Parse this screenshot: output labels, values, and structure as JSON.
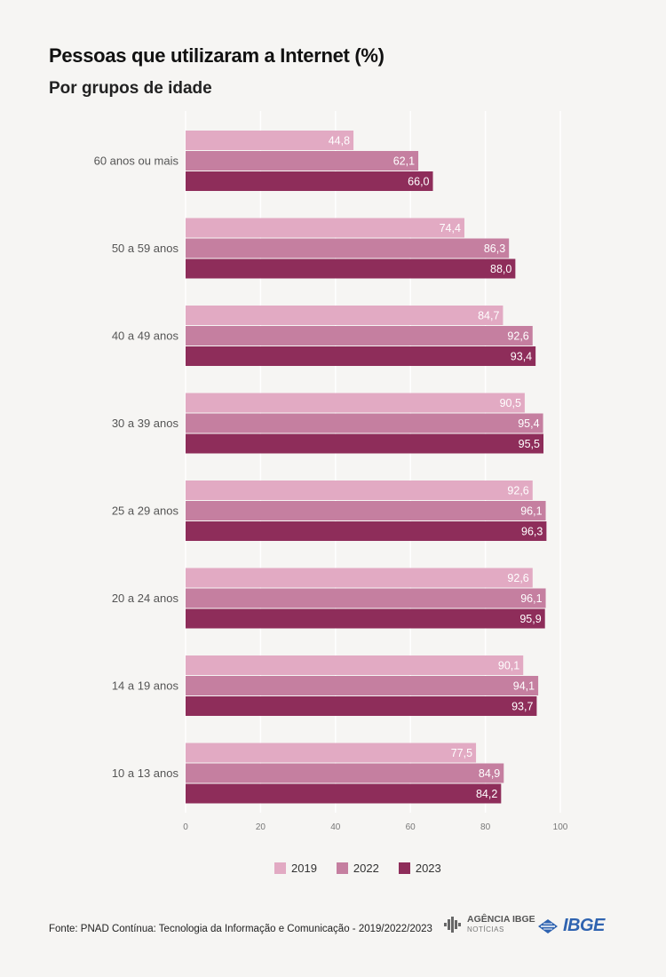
{
  "header": {
    "title": "Pessoas que utilizaram a Internet (%)",
    "subtitle": "Por grupos de idade"
  },
  "legend": {
    "items": [
      {
        "label": "2019",
        "color": "#e2aac3"
      },
      {
        "label": "2022",
        "color": "#c57fa0"
      },
      {
        "label": "2023",
        "color": "#8e2d5a"
      }
    ]
  },
  "footer": {
    "source": "Fonte: PNAD Contínua: Tecnologia da Informação e Comunicação - 2019/2022/2023",
    "agency_logo": "AGÊNCIA IBGE",
    "agency_sub": "NOTÍCIAS",
    "ibge_logo": "IBGE"
  },
  "chart_data": {
    "type": "bar",
    "orientation": "horizontal",
    "categories": [
      "60 anos ou mais",
      "50 a 59 anos",
      "40 a 49 anos",
      "30 a 39 anos",
      "25 a 29 anos",
      "20 a 24 anos",
      "14 a 19 anos",
      "10 a 13 anos"
    ],
    "series": [
      {
        "name": "2019",
        "color": "#e2aac3",
        "values": [
          44.8,
          74.4,
          84.7,
          90.5,
          92.6,
          92.6,
          90.1,
          77.5
        ],
        "labels": [
          "44,8",
          "74,4",
          "84,7",
          "90,5",
          "92,6",
          "92,6",
          "90,1",
          "77,5"
        ]
      },
      {
        "name": "2022",
        "color": "#c57fa0",
        "values": [
          62.1,
          86.3,
          92.6,
          95.4,
          96.1,
          96.1,
          94.1,
          84.9
        ],
        "labels": [
          "62,1",
          "86,3",
          "92,6",
          "95,4",
          "96,1",
          "96,1",
          "94,1",
          "84,9"
        ]
      },
      {
        "name": "2023",
        "color": "#8e2d5a",
        "values": [
          66.0,
          88.0,
          93.4,
          95.5,
          96.3,
          95.9,
          93.7,
          84.2
        ],
        "labels": [
          "66,0",
          "88,0",
          "93,4",
          "95,5",
          "96,3",
          "95,9",
          "93,7",
          "84,2"
        ]
      }
    ],
    "xlim": [
      0,
      100
    ],
    "xticks": [
      0,
      20,
      40,
      60,
      80,
      100
    ],
    "grid": true,
    "legend_position": "bottom"
  }
}
